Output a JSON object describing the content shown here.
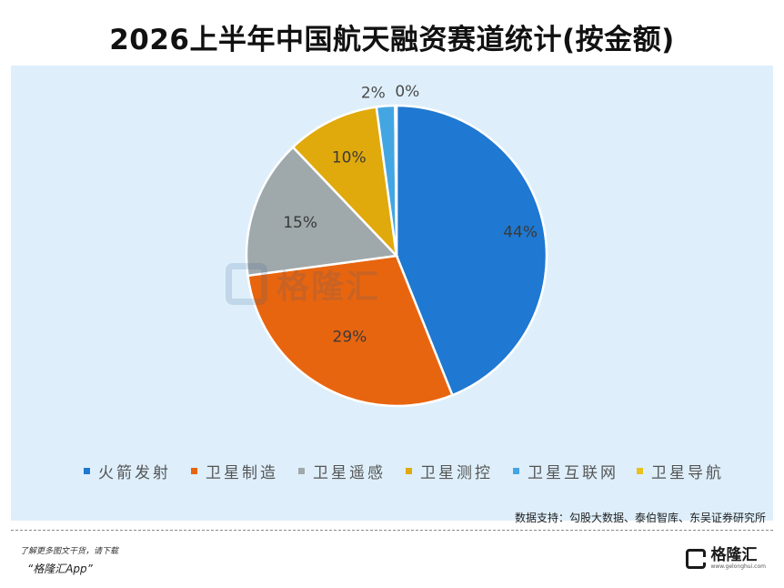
{
  "title": "2026上半年中国航天融资赛道统计(按金额)",
  "chart_data": {
    "type": "pie",
    "title": "2026上半年中国航天融资赛道统计(按金额)",
    "categories": [
      "火箭发射",
      "卫星制造",
      "卫星遥感",
      "卫星测控",
      "卫星互联网",
      "卫星导航"
    ],
    "values": [
      44,
      29,
      15,
      10,
      2,
      0
    ],
    "labels": [
      "44%",
      "29%",
      "15%",
      "10%",
      "2%",
      "0%"
    ],
    "colors": [
      "#1f78d1",
      "#e8650f",
      "#9fa8ab",
      "#e0a90c",
      "#43a6e3",
      "#e8c11c"
    ],
    "legend_position": "bottom",
    "start_angle": "12 o'clock, clockwise"
  },
  "source": "数据支持：勾股大数据、泰伯智库、东吴证券研究所",
  "footer": {
    "line1": "了解更多图文干货，请下载",
    "line2": "“格隆汇App”"
  },
  "logo": {
    "name": "格隆汇",
    "url": "www.gelonghui.com"
  },
  "watermark": {
    "text": "格隆汇"
  }
}
